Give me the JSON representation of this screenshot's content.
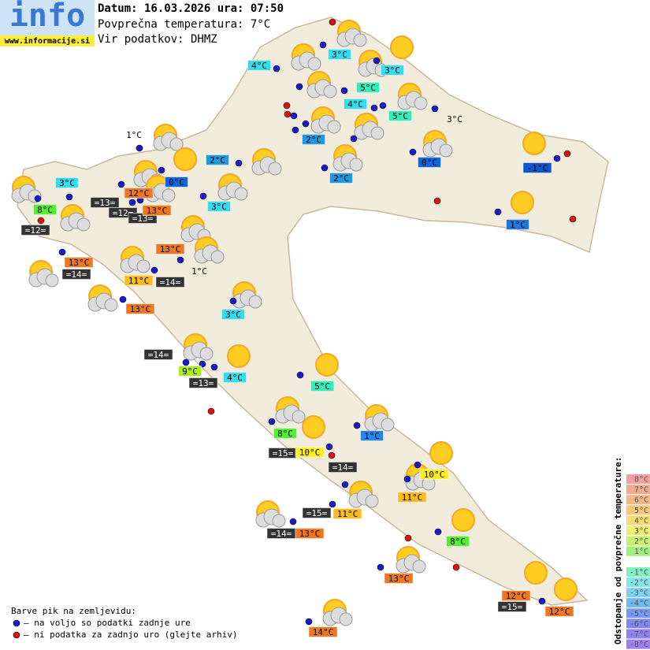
{
  "header": {
    "logo": "info",
    "website": "www.informacije.si",
    "date_line": "Datum: 16.03.2026 ura: 07:50",
    "avg_temp": "Povprečna temperatura: 7°C",
    "source": "Vir podatkov: DHMZ"
  },
  "stations": [
    {
      "label": "4°C",
      "color": "#33ddee"
    },
    {
      "label": "3°C",
      "color": "#33ddee"
    },
    {
      "label": "3°C",
      "color": "#33ddee"
    },
    {
      "label": "5°C",
      "color": "#33eebb"
    },
    {
      "label": "4°C",
      "color": "#33ddee"
    },
    {
      "label": "5°C",
      "color": "#33eebb"
    },
    {
      "label": "3°C"
    },
    {
      "label": "2°C",
      "color": "#2299dd"
    },
    {
      "label": "1°C"
    },
    {
      "label": "2°C",
      "color": "#2299dd"
    },
    {
      "label": "0°C",
      "color": "#1166dd"
    },
    {
      "label": "-1°C",
      "color": "#1155cc"
    },
    {
      "label": "3°C",
      "color": "#33ddee"
    },
    {
      "label": "2°C",
      "color": "#2299dd"
    },
    {
      "label": "0°C",
      "color": "#1166dd"
    },
    {
      "label": "12°C",
      "color": "#ee7722"
    },
    {
      "label": "=13=",
      "color": "#333333",
      "text_color": "#ffffff"
    },
    {
      "label": "=12=",
      "color": "#333333",
      "text_color": "#ffffff"
    },
    {
      "label": "=13=",
      "color": "#333333",
      "text_color": "#ffffff"
    },
    {
      "label": "13°C",
      "color": "#ee7722"
    },
    {
      "label": "3°C",
      "color": "#33ddee"
    },
    {
      "label": "8°C",
      "color": "#55ee33"
    },
    {
      "label": "1°C",
      "color": "#2277dd"
    },
    {
      "label": "=12=",
      "color": "#333333",
      "text_color": "#ffffff"
    },
    {
      "label": "13°C",
      "color": "#ee7722"
    },
    {
      "label": "13°C",
      "color": "#ee7722"
    },
    {
      "label": "=14=",
      "color": "#333333",
      "text_color": "#ffffff"
    },
    {
      "label": "1°C"
    },
    {
      "label": "11°C",
      "color": "#ffbb22"
    },
    {
      "label": "=14=",
      "color": "#333333",
      "text_color": "#ffffff"
    },
    {
      "label": "13°C",
      "color": "#ee7722"
    },
    {
      "label": "3°C",
      "color": "#33ddee"
    },
    {
      "label": "=14=",
      "color": "#333333",
      "text_color": "#ffffff"
    },
    {
      "label": "9°C",
      "color": "#aaee22"
    },
    {
      "label": "4°C",
      "color": "#33ddee"
    },
    {
      "label": "=13=",
      "color": "#333333",
      "text_color": "#ffffff"
    },
    {
      "label": "5°C",
      "color": "#33eebb"
    },
    {
      "label": "8°C",
      "color": "#55ee33"
    },
    {
      "label": "1°C",
      "color": "#2288ee"
    },
    {
      "label": "=15=",
      "color": "#333333",
      "text_color": "#ffffff"
    },
    {
      "label": "10°C",
      "color": "#ffee22"
    },
    {
      "label": "10°C",
      "color": "#ffee22"
    },
    {
      "label": "=14=",
      "color": "#333333",
      "text_color": "#ffffff"
    },
    {
      "label": "11°C",
      "color": "#ffbb22"
    },
    {
      "label": "=15=",
      "color": "#333333",
      "text_color": "#ffffff"
    },
    {
      "label": "11°C",
      "color": "#ffbb22"
    },
    {
      "label": "8°C",
      "color": "#55ee33"
    },
    {
      "label": "=14=",
      "color": "#333333",
      "text_color": "#ffffff"
    },
    {
      "label": "13°C",
      "color": "#ee7722"
    },
    {
      "label": "13°C",
      "color": "#ee7722"
    },
    {
      "label": "12°C",
      "color": "#ee7722"
    },
    {
      "label": "=15=",
      "color": "#333333",
      "text_color": "#ffffff"
    },
    {
      "label": "12°C",
      "color": "#ee7722"
    },
    {
      "label": "14°C",
      "color": "#ee7722"
    }
  ],
  "legend": {
    "title": "Barve pik na zemljevidu:",
    "items": [
      {
        "label": "– na voljo so podatki zadnje ure",
        "color": "#1a1acc"
      },
      {
        "label": "– ni podatka za zadnjo uro (glejte arhiv)",
        "color": "#dd1111"
      }
    ]
  },
  "scale": {
    "title": "Odstopanje od povprečne temperature:",
    "levels": [
      {
        "label": "8°C",
        "color": "#f4a0a0"
      },
      {
        "label": "7°C",
        "color": "#f4aa90"
      },
      {
        "label": "6°C",
        "color": "#f4b888"
      },
      {
        "label": "5°C",
        "color": "#f4c878"
      },
      {
        "label": "4°C",
        "color": "#f4dc70"
      },
      {
        "label": "3°C",
        "color": "#eeee70"
      },
      {
        "label": "2°C",
        "color": "#c8f070"
      },
      {
        "label": "1°C",
        "color": "#a0f080"
      },
      {
        "label": "-1°C",
        "color": "#80f0c0"
      },
      {
        "label": "-2°C",
        "color": "#80e8e8"
      },
      {
        "label": "-3°C",
        "color": "#80d0f0"
      },
      {
        "label": "-4°C",
        "color": "#70b8f0"
      },
      {
        "label": "-5°C",
        "color": "#7898f0"
      },
      {
        "label": "-6°C",
        "color": "#8088f0"
      },
      {
        "label": "-7°C",
        "color": "#9080f0"
      },
      {
        "label": "-8°C",
        "color": "#a080f0"
      }
    ]
  }
}
